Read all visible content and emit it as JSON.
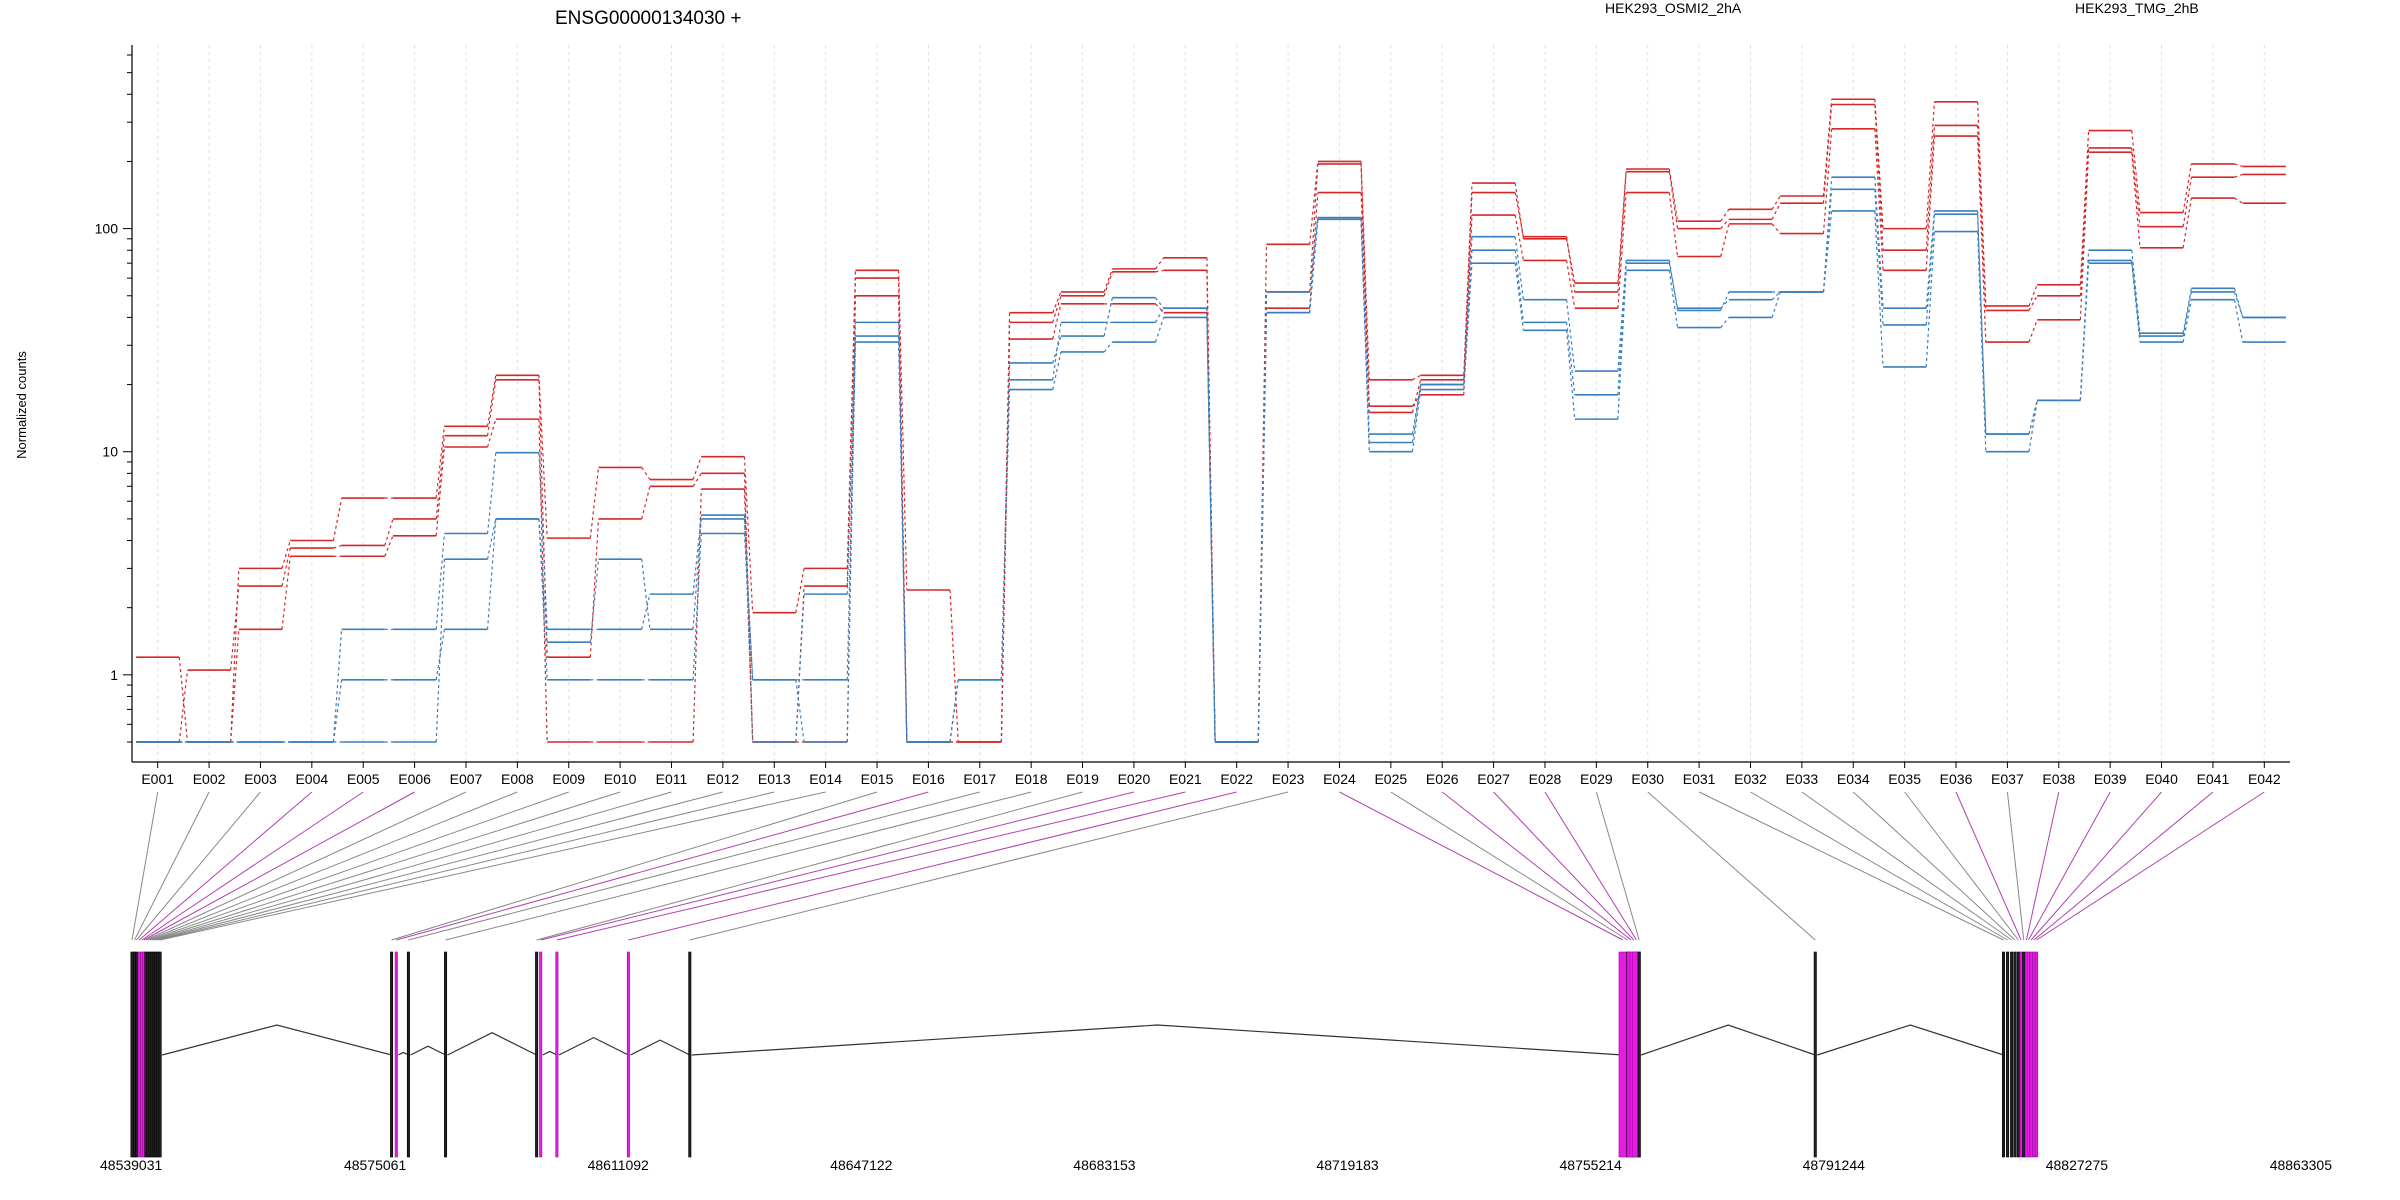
{
  "chart_data": {
    "type": "line",
    "title": "ENSG00000134030 +",
    "ylabel": "Normalized counts",
    "xlabel": "",
    "yscale": "log",
    "ylim": [
      0.5,
      600
    ],
    "yticks": [
      "1",
      "10",
      "100"
    ],
    "categories": [
      "E001",
      "E002",
      "E003",
      "E004",
      "E005",
      "E006",
      "E007",
      "E008",
      "E009",
      "E010",
      "E011",
      "E012",
      "E013",
      "E014",
      "E015",
      "E016",
      "E017",
      "E018",
      "E019",
      "E020",
      "E021",
      "E022",
      "E023",
      "E024",
      "E025",
      "E026",
      "E027",
      "E028",
      "E029",
      "E030",
      "E031",
      "E032",
      "E033",
      "E034",
      "E035",
      "E036",
      "E037",
      "E038",
      "E039",
      "E040",
      "E041",
      "E042"
    ],
    "legend": [
      {
        "name": "HEK293_OSMI2_2hA",
        "color": "#d62728"
      },
      {
        "name": "HEK293_TMG_2hB",
        "color": "#3a7fbd"
      }
    ],
    "series": [
      {
        "group": 0,
        "values": [
          1.2,
          0.5,
          3.0,
          4.0,
          6.2,
          6.2,
          13.0,
          22.0,
          4.1,
          8.5,
          7.5,
          9.5,
          1.9,
          3.0,
          65,
          2.4,
          0.5,
          42,
          52,
          66,
          74,
          0.5,
          85,
          200,
          21,
          22,
          160,
          90,
          57,
          185,
          108,
          122,
          140,
          380,
          100,
          370,
          45,
          56,
          275,
          118,
          195,
          190
        ]
      },
      {
        "group": 0,
        "values": [
          0.5,
          1.05,
          2.5,
          3.7,
          3.8,
          5.0,
          11.8,
          21.0,
          1.2,
          5.0,
          7.0,
          8.0,
          0.5,
          2.5,
          60,
          0.5,
          0.5,
          38,
          50,
          64,
          65,
          0.5,
          52,
          195,
          15,
          21,
          145,
          92,
          52,
          180,
          100,
          110,
          130,
          360,
          80,
          290,
          43,
          50,
          230,
          102,
          170,
          175
        ]
      },
      {
        "group": 0,
        "values": [
          0.5,
          0.5,
          1.6,
          3.4,
          3.4,
          4.2,
          10.5,
          14.0,
          0.5,
          0.5,
          0.5,
          6.8,
          0.5,
          0.5,
          50,
          0.5,
          0.5,
          32,
          46,
          46,
          42,
          0.5,
          44,
          145,
          16,
          18,
          115,
          72,
          44,
          145,
          75,
          105,
          95,
          280,
          65,
          260,
          31,
          39,
          220,
          82,
          137,
          130
        ]
      },
      {
        "group": 1,
        "values": [
          0.5,
          0.5,
          0.5,
          0.5,
          1.6,
          1.6,
          4.3,
          9.9,
          1.6,
          1.6,
          2.3,
          5.2,
          0.5,
          2.3,
          38,
          0.5,
          0.95,
          25,
          33,
          49,
          44,
          0.5,
          52,
          112,
          12,
          20,
          92,
          48,
          23,
          72,
          43,
          52,
          52,
          170,
          44,
          120,
          12,
          17,
          80,
          34,
          54,
          40
        ]
      },
      {
        "group": 1,
        "values": [
          0.5,
          0.5,
          0.5,
          0.5,
          0.95,
          0.95,
          1.6,
          5.0,
          0.95,
          0.95,
          0.95,
          4.3,
          0.95,
          0.95,
          31,
          0.5,
          0.95,
          19,
          28,
          31,
          40,
          0.5,
          42,
          110,
          10,
          19,
          70,
          35,
          14,
          65,
          36,
          40,
          52,
          120,
          24,
          97,
          10,
          17,
          70,
          31,
          48,
          31
        ]
      },
      {
        "group": 1,
        "values": [
          0.5,
          0.5,
          0.5,
          0.5,
          0.5,
          0.5,
          3.3,
          5.0,
          1.4,
          3.3,
          1.6,
          5.0,
          0.95,
          0.5,
          33,
          0.5,
          0.95,
          21,
          38,
          38,
          44,
          0.5,
          42,
          112,
          11,
          20,
          80,
          38,
          18,
          70,
          44,
          48,
          52,
          150,
          37,
          116,
          12,
          17,
          72,
          33,
          52,
          40
        ]
      }
    ]
  },
  "gene_model": {
    "coord_ticks": [
      "48539031",
      "48575061",
      "48611092",
      "48647122",
      "48683153",
      "48719183",
      "48755214",
      "48791244",
      "48827275",
      "48863305"
    ],
    "genome_range": [
      48539031,
      48863305
    ],
    "exon_starts": [
      48539031,
      48539400,
      48539700,
      48540100,
      48540500,
      48540800,
      48541100,
      48541400,
      48541700,
      48542000,
      48542300,
      48542600,
      48542900,
      48543200,
      48577500,
      48578200,
      48580000,
      48585500,
      48599000,
      48599600,
      48602000,
      48612600,
      48621700,
      48760000,
      48760700,
      48761200,
      48761600,
      48762000,
      48762400,
      48788500,
      48816400,
      48817000,
      48817600,
      48818100,
      48818600,
      48819000,
      48819400,
      48819800,
      48820100,
      48820500,
      48820900,
      48821300
    ],
    "highlight_exons": [
      3,
      4,
      5,
      15,
      19,
      20,
      21,
      23,
      25,
      26,
      27,
      35,
      37,
      38,
      39,
      40,
      41
    ]
  }
}
